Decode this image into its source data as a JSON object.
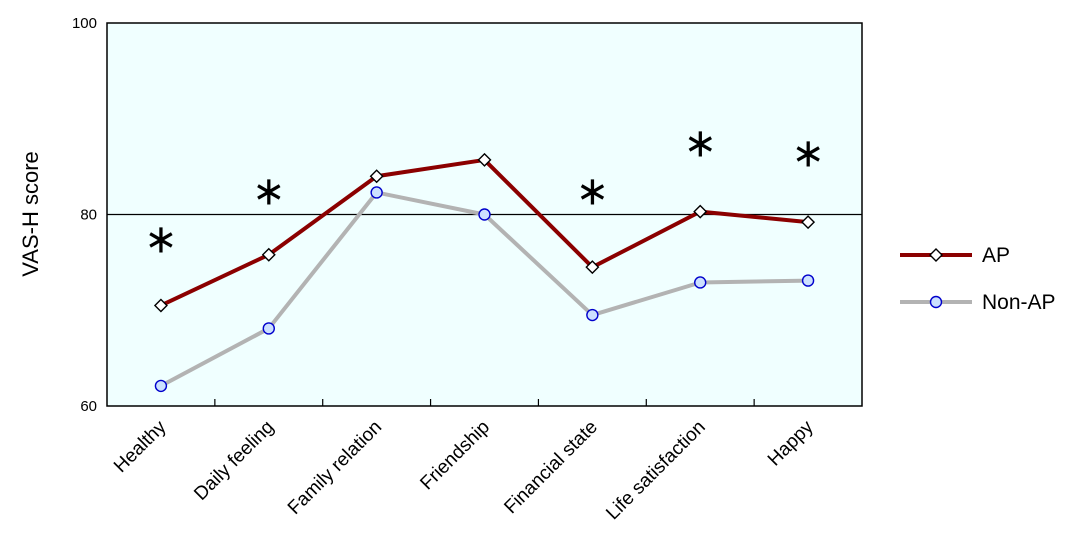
{
  "chart_data": {
    "type": "line",
    "title": "",
    "xlabel": "",
    "ylabel": "VAS-H score",
    "ylim": [
      60,
      100
    ],
    "yticks": [
      60,
      80,
      100
    ],
    "reference_line": 80,
    "categories": [
      "Healthy",
      "Daily feeling",
      "Family relation",
      "Friendship",
      "Financial state",
      "Life satisfaction",
      "Happy"
    ],
    "series": [
      {
        "name": "AP",
        "color": "#8b0000",
        "marker": "diamond",
        "values": [
          70.5,
          75.8,
          84.0,
          85.7,
          74.5,
          80.3,
          79.2
        ]
      },
      {
        "name": "Non-AP",
        "color": "#b3b3b3",
        "marker": "circle",
        "marker_color": "#0000cc",
        "values": [
          62.1,
          68.1,
          82.3,
          80.0,
          69.5,
          72.9,
          73.1
        ]
      }
    ],
    "significance_markers": [
      {
        "category": "Healthy",
        "y": 77.5,
        "symbol": "*"
      },
      {
        "category": "Daily feeling",
        "y": 82.5,
        "symbol": "*"
      },
      {
        "category": "Financial state",
        "y": 82.5,
        "symbol": "*"
      },
      {
        "category": "Life satisfaction",
        "y": 87.5,
        "symbol": "*"
      },
      {
        "category": "Happy",
        "y": 86.5,
        "symbol": "*"
      }
    ],
    "plot_background": "#f0ffff",
    "grid": false,
    "legend_position": "right"
  }
}
